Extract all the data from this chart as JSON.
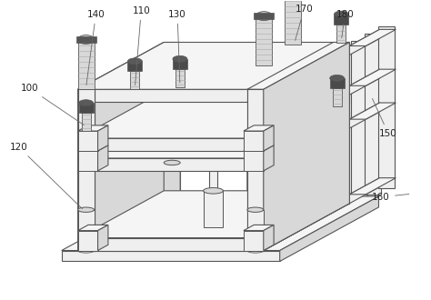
{
  "background_color": "#ffffff",
  "line_color": "#555555",
  "fill_light": "#efefef",
  "fill_mid": "#d8d8d8",
  "fill_dark": "#c0c0c0",
  "fill_top": "#f5f5f5",
  "fill_side": "#e0e0e0",
  "figsize": [
    4.74,
    3.3
  ],
  "dpi": 100
}
